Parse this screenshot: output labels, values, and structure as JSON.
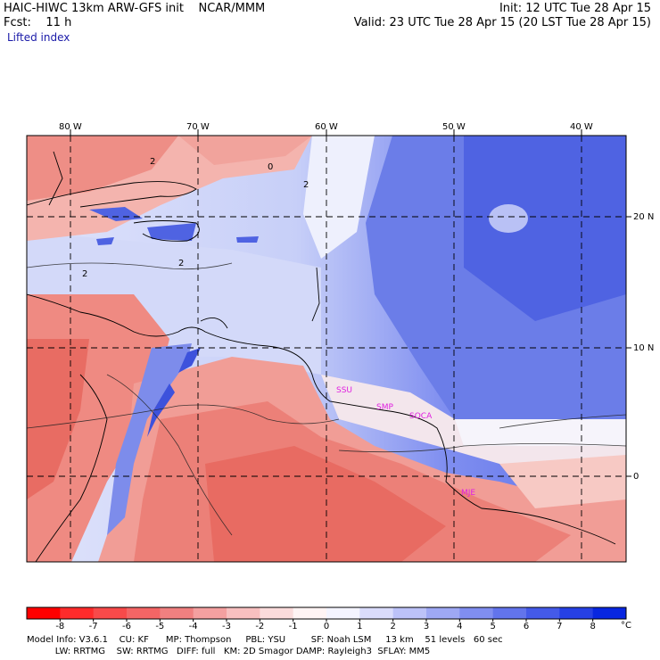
{
  "header": {
    "title_left": "HAIC-HIWC 13km ARW-GFS init    NCAR/MMM",
    "init": "Init: 12 UTC Tue 28 Apr 15",
    "fcst": "Fcst:    11 h",
    "valid": "Valid: 23 UTC Tue 28 Apr 15 (20 LST Tue 28 Apr 15)",
    "field_name": "Lifted index"
  },
  "map": {
    "lon_labels": [
      "80 W",
      "70 W",
      "60 W",
      "50 W",
      "40 W"
    ],
    "lat_labels": [
      "20 N",
      "10 N",
      "0"
    ],
    "contour_labels": [
      "2",
      "2",
      "2",
      "2",
      "0"
    ],
    "stations": [
      "SSU",
      "SMP",
      "SOCA",
      "MJE"
    ],
    "colors": {
      "neg_strong": "#e8493f",
      "neg_light": "#f7b8b0",
      "pos_light": "#c9d2f7",
      "pos_strong": "#4a5ee0",
      "station": "#e020e0"
    }
  },
  "colorbar": {
    "ticks": [
      "-8",
      "-7",
      "-6",
      "-5",
      "-4",
      "-3",
      "-2",
      "-1",
      "0",
      "1",
      "2",
      "3",
      "4",
      "5",
      "6",
      "7",
      "8"
    ],
    "unit": "°C",
    "colors": [
      "#ff0000",
      "#ff2b2b",
      "#f84a4a",
      "#f46565",
      "#f08080",
      "#f4a0a0",
      "#f8c0c0",
      "#fbdcdc",
      "#fff4f4",
      "#f4f4ff",
      "#dadcfb",
      "#bcc2f8",
      "#9ea8f4",
      "#808ef0",
      "#6274ec",
      "#445ae8",
      "#2640e4",
      "#0826e0"
    ]
  },
  "footer": {
    "line1": "Model Info: V3.6.1    CU: KF      MP: Thompson     PBL: YSU         SF: Noah LSM     13 km    51 levels   60 sec",
    "line2": "          LW: RRTMG    SW: RRTMG   DIFF: full   KM: 2D Smagor DAMP: Rayleigh3  SFLAY: MM5"
  }
}
